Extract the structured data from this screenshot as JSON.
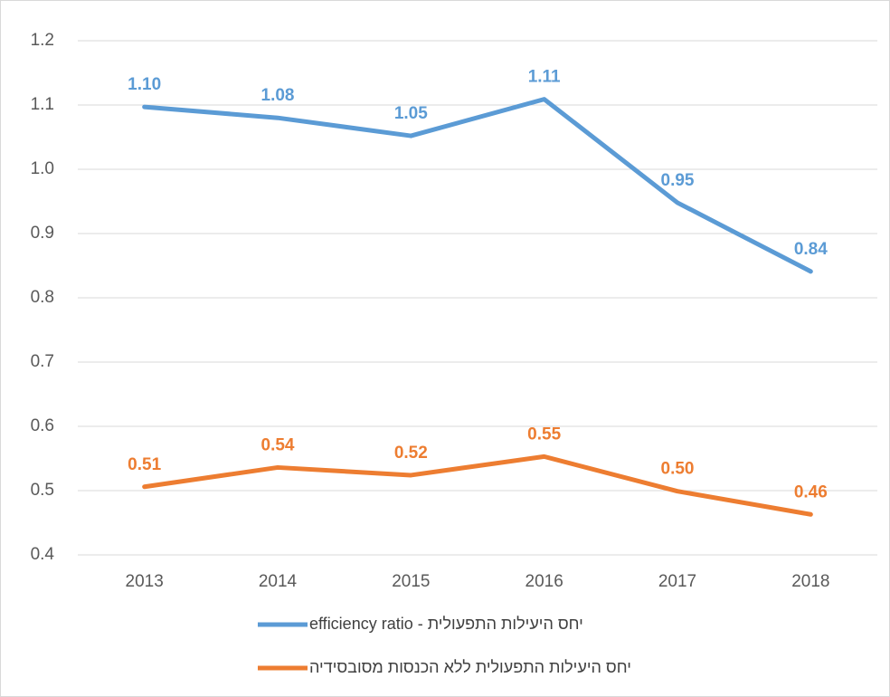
{
  "chart_data": {
    "type": "line",
    "categories": [
      "2013",
      "2014",
      "2015",
      "2016",
      "2017",
      "2018"
    ],
    "series": [
      {
        "name": "יחס היעילות התפעולית - efficiency ratio",
        "color": "#5b9bd5",
        "values": [
          1.097,
          1.08,
          1.052,
          1.109,
          0.948,
          0.841
        ],
        "value_labels": [
          "1.10",
          "1.08",
          "1.05",
          "1.11",
          "0.95",
          "0.84"
        ]
      },
      {
        "name": "יחס היעילות התפעולית ללא הכנסות מסובסידיה",
        "color": "#ed7d31",
        "values": [
          0.506,
          0.536,
          0.524,
          0.553,
          0.499,
          0.463
        ],
        "value_labels": [
          "0.51",
          "0.54",
          "0.52",
          "0.55",
          "0.50",
          "0.46"
        ]
      }
    ],
    "ylim": [
      0.4,
      1.2
    ],
    "yticks": [
      0.4,
      0.5,
      0.6,
      0.7,
      0.8,
      0.9,
      {
        "value": 1,
        "label": "1.0"
      },
      1.1,
      1.2
    ],
    "grid": true
  }
}
